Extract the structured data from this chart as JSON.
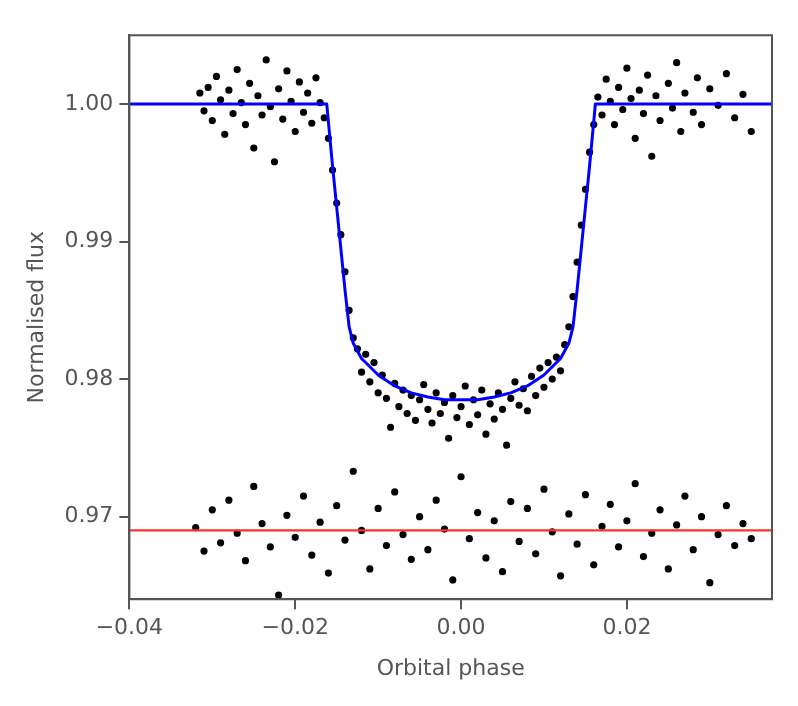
{
  "chart_data": {
    "type": "scatter",
    "xlabel": "Orbital phase",
    "ylabel": "Normalised flux",
    "grid": false,
    "legend": false,
    "xlim": [
      -0.04,
      0.0375
    ],
    "ylim": [
      0.964,
      1.005
    ],
    "xticks": [
      {
        "value": -0.04,
        "label": "−0.04"
      },
      {
        "value": -0.02,
        "label": "−0.02"
      },
      {
        "value": 0,
        "label": "0.00"
      },
      {
        "value": 0.02,
        "label": "0.02"
      }
    ],
    "yticks": [
      {
        "value": 0.97,
        "label": "0.97"
      },
      {
        "value": 0.98,
        "label": "0.98"
      },
      {
        "value": 0.99,
        "label": "0.99"
      },
      {
        "value": 1.0,
        "label": "1.00"
      }
    ],
    "ref_lines": [
      {
        "axis": "y",
        "value": 0.969,
        "color": "#ff3030",
        "line_style": "solid"
      }
    ],
    "series": [
      {
        "type": "scatter",
        "marker": "circle",
        "color": "#000000",
        "x": [
          -0.0315,
          -0.031,
          -0.0305,
          -0.03,
          -0.0295,
          -0.029,
          -0.0285,
          -0.028,
          -0.0275,
          -0.027,
          -0.0265,
          -0.026,
          -0.0255,
          -0.025,
          -0.0245,
          -0.024,
          -0.0235,
          -0.023,
          -0.0225,
          -0.022,
          -0.0215,
          -0.021,
          -0.0205,
          -0.02,
          -0.0195,
          -0.019,
          -0.0185,
          -0.018,
          -0.0175,
          -0.017,
          -0.0165,
          -0.016,
          -0.0155,
          -0.015,
          -0.0145,
          -0.014,
          -0.0135,
          -0.013,
          -0.0125,
          -0.012,
          -0.0115,
          -0.011,
          -0.0105,
          -0.01,
          -0.0095,
          -0.009,
          -0.0085,
          -0.008,
          -0.0075,
          -0.007,
          -0.0065,
          -0.006,
          -0.0055,
          -0.005,
          -0.0045,
          -0.004,
          -0.0035,
          -0.003,
          -0.0025,
          -0.002,
          -0.0015,
          -0.001,
          -0.0005,
          0,
          0.0005,
          0.001,
          0.0015,
          0.002,
          0.0025,
          0.003,
          0.0035,
          0.004,
          0.0045,
          0.005,
          0.0055,
          0.006,
          0.0065,
          0.007,
          0.0075,
          0.008,
          0.0085,
          0.009,
          0.0095,
          0.01,
          0.0105,
          0.011,
          0.0115,
          0.012,
          0.0125,
          0.013,
          0.0135,
          0.014,
          0.0145,
          0.015,
          0.0155,
          0.016,
          0.0165,
          0.017,
          0.0175,
          0.018,
          0.0185,
          0.019,
          0.0195,
          0.02,
          0.0205,
          0.021,
          0.0215,
          0.022,
          0.0225,
          0.023,
          0.0235,
          0.024,
          0.025,
          0.0255,
          0.026,
          0.0265,
          0.027,
          0.028,
          0.0285,
          0.029,
          0.03,
          0.031,
          0.032,
          0.033,
          0.034,
          0.035
        ],
        "values": [
          1.0008,
          0.9995,
          1.0012,
          0.9988,
          1.002,
          1.0003,
          0.9978,
          1.001,
          0.9993,
          1.0025,
          1.0001,
          0.9985,
          1.0015,
          0.9968,
          1.0006,
          0.9992,
          1.0032,
          0.9998,
          0.9958,
          1.0011,
          0.9989,
          1.0024,
          1.0002,
          0.998,
          1.0016,
          0.9994,
          1.0008,
          0.9986,
          1.0019,
          1.0001,
          0.999,
          0.9975,
          0.9952,
          0.9928,
          0.9905,
          0.9878,
          0.985,
          0.983,
          0.9822,
          0.9805,
          0.9818,
          0.9798,
          0.9812,
          0.979,
          0.9803,
          0.9786,
          0.9765,
          0.9797,
          0.978,
          0.9792,
          0.9775,
          0.9788,
          0.977,
          0.9785,
          0.9796,
          0.9778,
          0.9768,
          0.979,
          0.9775,
          0.9783,
          0.9757,
          0.9788,
          0.9772,
          0.978,
          0.9795,
          0.9767,
          0.9785,
          0.9774,
          0.9792,
          0.976,
          0.9782,
          0.9771,
          0.979,
          0.9778,
          0.9752,
          0.9786,
          0.9798,
          0.9781,
          0.9793,
          0.9777,
          0.9802,
          0.9788,
          0.9808,
          0.9794,
          0.9812,
          0.98,
          0.9816,
          0.9806,
          0.9825,
          0.9838,
          0.986,
          0.9885,
          0.9912,
          0.9938,
          0.9965,
          0.9985,
          1.0005,
          0.9992,
          1.0018,
          1.0002,
          0.9985,
          1.0012,
          0.9996,
          1.0026,
          1.0004,
          0.9975,
          1.001,
          0.9993,
          1.0021,
          0.9962,
          1.0006,
          0.9988,
          1.0015,
          0.9997,
          1.003,
          0.998,
          1.0008,
          0.9994,
          1.0019,
          0.9985,
          1.0011,
          0.9999,
          1.0022,
          0.999,
          1.0007,
          0.998
        ]
      },
      {
        "type": "scatter",
        "marker": "circle",
        "color": "#000000",
        "x": [
          -0.032,
          -0.031,
          -0.03,
          -0.029,
          -0.028,
          -0.027,
          -0.026,
          -0.025,
          -0.024,
          -0.023,
          -0.022,
          -0.021,
          -0.02,
          -0.019,
          -0.018,
          -0.017,
          -0.016,
          -0.015,
          -0.014,
          -0.013,
          -0.012,
          -0.011,
          -0.01,
          -0.009,
          -0.008,
          -0.007,
          -0.006,
          -0.005,
          -0.004,
          -0.003,
          -0.002,
          -0.001,
          0,
          0.001,
          0.002,
          0.003,
          0.004,
          0.005,
          0.006,
          0.007,
          0.008,
          0.009,
          0.01,
          0.011,
          0.012,
          0.013,
          0.014,
          0.015,
          0.016,
          0.017,
          0.018,
          0.019,
          0.02,
          0.021,
          0.022,
          0.023,
          0.024,
          0.025,
          0.026,
          0.027,
          0.028,
          0.029,
          0.03,
          0.031,
          0.032,
          0.033,
          0.034,
          0.035
        ],
        "values": [
          0.9692,
          0.9675,
          0.9705,
          0.9681,
          0.9712,
          0.9688,
          0.9668,
          0.9722,
          0.9695,
          0.9678,
          0.9643,
          0.9701,
          0.9685,
          0.9715,
          0.9672,
          0.9696,
          0.9659,
          0.9708,
          0.9683,
          0.9733,
          0.969,
          0.9662,
          0.9706,
          0.9679,
          0.9718,
          0.9687,
          0.9669,
          0.97,
          0.9676,
          0.9712,
          0.9691,
          0.9654,
          0.9729,
          0.9684,
          0.9703,
          0.967,
          0.9697,
          0.966,
          0.9711,
          0.9682,
          0.9706,
          0.9673,
          0.972,
          0.9689,
          0.9657,
          0.9702,
          0.968,
          0.9716,
          0.9665,
          0.9693,
          0.9709,
          0.9678,
          0.9697,
          0.9724,
          0.9671,
          0.9688,
          0.9705,
          0.9662,
          0.9694,
          0.9715,
          0.9676,
          0.97,
          0.9652,
          0.9687,
          0.9708,
          0.9679,
          0.9695,
          0.9684
        ]
      },
      {
        "type": "line",
        "marker": "none",
        "color": "#0000ff",
        "x": [
          -0.04,
          -0.0162,
          -0.0155,
          -0.015,
          -0.0145,
          -0.014,
          -0.0135,
          -0.013,
          -0.012,
          -0.01,
          -0.008,
          -0.006,
          -0.004,
          -0.002,
          0,
          0.002,
          0.004,
          0.006,
          0.008,
          0.01,
          0.012,
          0.013,
          0.0135,
          0.014,
          0.0145,
          0.015,
          0.0155,
          0.0162,
          0.0375
        ],
        "values": [
          1.0,
          1.0,
          0.9955,
          0.9925,
          0.9895,
          0.9865,
          0.9838,
          0.9826,
          0.9815,
          0.9803,
          0.9795,
          0.979,
          0.9787,
          0.9785,
          0.9785,
          0.9785,
          0.9787,
          0.979,
          0.9795,
          0.9803,
          0.9815,
          0.9826,
          0.9838,
          0.9865,
          0.9895,
          0.9925,
          0.9955,
          1.0,
          1.0
        ]
      }
    ]
  }
}
